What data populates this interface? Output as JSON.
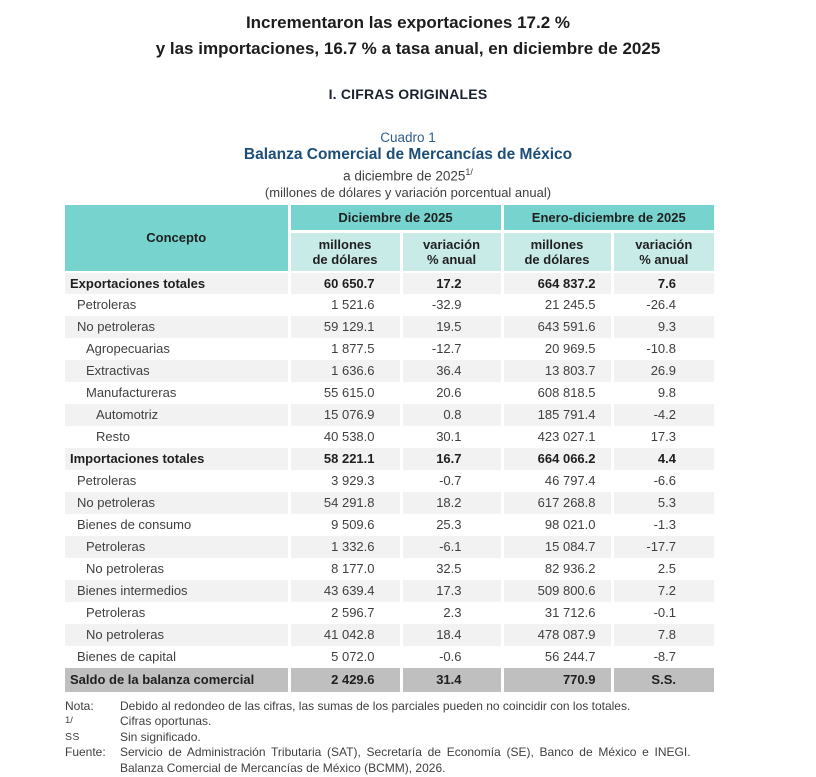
{
  "page": {
    "title_line1": "Incrementaron las exportaciones 17.2 %",
    "title_line2": "y las importaciones, 16.7 % a tasa anual, en diciembre de 2025",
    "section_heading": "I. CIFRAS ORIGINALES",
    "cuadro_label": "Cuadro 1",
    "table_title": "Balanza Comercial de Mercancías de México",
    "subtitle_period": "a diciembre de 2025",
    "subtitle_period_sup": "1/",
    "subtitle_units": "(millones de dólares y variación porcentual anual)"
  },
  "colors": {
    "header_teal": "#76d3ce",
    "subheader_teal": "#c9ebe8",
    "stripe_gray": "#f2f2f2",
    "saldo_gray": "#bfbfbf",
    "title_blue": "#1b4e79",
    "cuadro_blue": "#2e5d8c"
  },
  "table": {
    "concept_header": "Concepto",
    "group_headers": [
      "Diciembre de 2025",
      "Enero-diciembre de 2025"
    ],
    "sub_headers": [
      "millones\nde dólares",
      "variación\n% anual",
      "millones\nde dólares",
      "variación\n% anual"
    ],
    "rows": [
      {
        "concept": "Exportaciones totales",
        "indent": 0,
        "style": "total",
        "values": [
          "60 650.7",
          "17.2",
          "664 837.2",
          "7.6"
        ]
      },
      {
        "concept": "Petroleras",
        "indent": 1,
        "style": "normal",
        "values": [
          "1 521.6",
          "-32.9",
          "21 245.5",
          "-26.4"
        ]
      },
      {
        "concept": "No petroleras",
        "indent": 1,
        "style": "normal",
        "values": [
          "59 129.1",
          "19.5",
          "643 591.6",
          "9.3"
        ]
      },
      {
        "concept": "Agropecuarias",
        "indent": 2,
        "style": "normal",
        "values": [
          "1 877.5",
          "-12.7",
          "20 969.5",
          "-10.8"
        ]
      },
      {
        "concept": "Extractivas",
        "indent": 2,
        "style": "normal",
        "values": [
          "1 636.6",
          "36.4",
          "13 803.7",
          "26.9"
        ]
      },
      {
        "concept": "Manufactureras",
        "indent": 2,
        "style": "normal",
        "values": [
          "55 615.0",
          "20.6",
          "608 818.5",
          "9.8"
        ]
      },
      {
        "concept": "Automotriz",
        "indent": 3,
        "style": "normal",
        "values": [
          "15 076.9",
          "0.8",
          "185 791.4",
          "-4.2"
        ]
      },
      {
        "concept": "Resto",
        "indent": 3,
        "style": "normal",
        "values": [
          "40 538.0",
          "30.1",
          "423 027.1",
          "17.3"
        ]
      },
      {
        "concept": "Importaciones totales",
        "indent": 0,
        "style": "total",
        "values": [
          "58 221.1",
          "16.7",
          "664 066.2",
          "4.4"
        ]
      },
      {
        "concept": "Petroleras",
        "indent": 1,
        "style": "normal",
        "values": [
          "3 929.3",
          "-0.7",
          "46 797.4",
          "-6.6"
        ]
      },
      {
        "concept": "No petroleras",
        "indent": 1,
        "style": "normal",
        "values": [
          "54 291.8",
          "18.2",
          "617 268.8",
          "5.3"
        ]
      },
      {
        "concept": "Bienes de consumo",
        "indent": 1,
        "style": "normal",
        "values": [
          "9 509.6",
          "25.3",
          "98 021.0",
          "-1.3"
        ]
      },
      {
        "concept": "Petroleras",
        "indent": 2,
        "style": "normal",
        "values": [
          "1 332.6",
          "-6.1",
          "15 084.7",
          "-17.7"
        ]
      },
      {
        "concept": "No petroleras",
        "indent": 2,
        "style": "normal",
        "values": [
          "8 177.0",
          "32.5",
          "82 936.2",
          "2.5"
        ]
      },
      {
        "concept": "Bienes intermedios",
        "indent": 1,
        "style": "normal",
        "values": [
          "43 639.4",
          "17.3",
          "509 800.6",
          "7.2"
        ]
      },
      {
        "concept": "Petroleras",
        "indent": 2,
        "style": "normal",
        "values": [
          "2 596.7",
          "2.3",
          "31 712.6",
          "-0.1"
        ]
      },
      {
        "concept": "No petroleras",
        "indent": 2,
        "style": "normal",
        "values": [
          "41 042.8",
          "18.4",
          "478 087.9",
          "7.8"
        ]
      },
      {
        "concept": "Bienes de capital",
        "indent": 1,
        "style": "normal",
        "values": [
          "5 072.0",
          "-0.6",
          "56 244.7",
          "-8.7"
        ]
      },
      {
        "concept": "Saldo de la balanza comercial",
        "indent": 0,
        "style": "saldo",
        "values": [
          "2 429.6",
          "31.4",
          "770.9",
          "S.S."
        ]
      }
    ]
  },
  "notes": [
    {
      "kind": "nota",
      "label": "Nota:",
      "text": "Debido al redondeo de las cifras, las sumas de los parciales pueden no coincidir con los totales."
    },
    {
      "kind": "footnote",
      "label": "1/",
      "text": "Cifras oportunas."
    },
    {
      "kind": "abbrev",
      "label": "SS",
      "text": "Sin significado."
    },
    {
      "kind": "fuente",
      "label": "Fuente:",
      "text": "Servicio de Administración Tributaria (SAT), Secretaría de Economía (SE), Banco de México e INEGI."
    },
    {
      "kind": "fuente-cont",
      "label": "",
      "text": "Balanza Comercial de Mercancías de México (BCMM), 2026."
    }
  ]
}
